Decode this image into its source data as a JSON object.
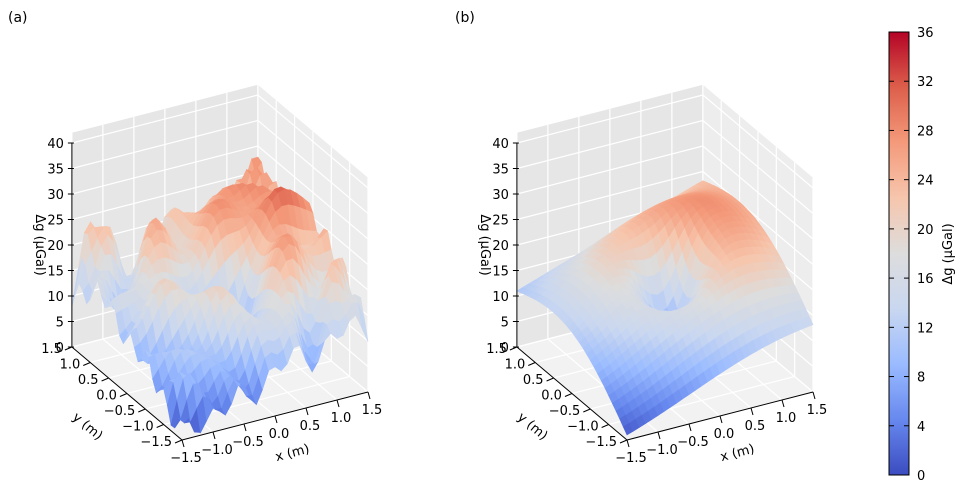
{
  "chart_data": [
    {
      "type": "surface3d",
      "panel_label": "(a)",
      "title": "",
      "xlabel": "x (m)",
      "ylabel": "y (m)",
      "zlabel": "Δg (μGal)",
      "xlim": [
        -1.5,
        1.5
      ],
      "ylim": [
        -1.5,
        1.5
      ],
      "zlim": [
        0,
        40
      ],
      "x_ticks": [
        "−1.5",
        "−1.0",
        "−0.5",
        "0.0",
        "0.5",
        "1.0",
        "1.5"
      ],
      "y_ticks": [
        "−1.5",
        "−1.0",
        "−0.5",
        "0.0",
        "0.5",
        "1.0",
        "1.5"
      ],
      "z_ticks": [
        "0",
        "5",
        "10",
        "15",
        "20",
        "25",
        "30",
        "35",
        "40"
      ],
      "surface": "measured (noisy) gravity anomaly: high ridge ~35 at y=+1.5 side, peak ~38 at corner, minimum ~1 at x=-1.5,y=-1.5, local depression ~11 near center",
      "colormap": "coolwarm"
    },
    {
      "type": "surface3d",
      "panel_label": "(b)",
      "title": "",
      "xlabel": "x (m)",
      "ylabel": "y (m)",
      "zlabel": "Δg (μGal)",
      "xlim": [
        -1.5,
        1.5
      ],
      "ylim": [
        -1.5,
        1.5
      ],
      "zlim": [
        0,
        40
      ],
      "x_ticks": [
        "−1.5",
        "−1.0",
        "−0.5",
        "0.0",
        "0.5",
        "1.0",
        "1.5"
      ],
      "y_ticks": [
        "−1.5",
        "−1.0",
        "−0.5",
        "0.0",
        "0.5",
        "1.0",
        "1.5"
      ],
      "z_ticks": [
        "0",
        "5",
        "10",
        "15",
        "20",
        "25",
        "30",
        "35",
        "40"
      ],
      "surface": "smooth fitted gravity anomaly: maximum ~38 at far edge, minimum ~1 at x=-1.5,y=-1.5, circular depression ~15 near center",
      "colormap": "coolwarm"
    }
  ],
  "colorbar": {
    "label": "Δg (μGal)",
    "ticks": [
      "0",
      "4",
      "8",
      "12",
      "16",
      "20",
      "24",
      "28",
      "32",
      "36"
    ],
    "range": [
      0,
      36
    ],
    "colors": [
      "#3b4cc0",
      "#6788ee",
      "#9abbff",
      "#c9d7f0",
      "#dddddd",
      "#f6c6ad",
      "#f49a7b",
      "#dd5f4b",
      "#b40426"
    ]
  }
}
